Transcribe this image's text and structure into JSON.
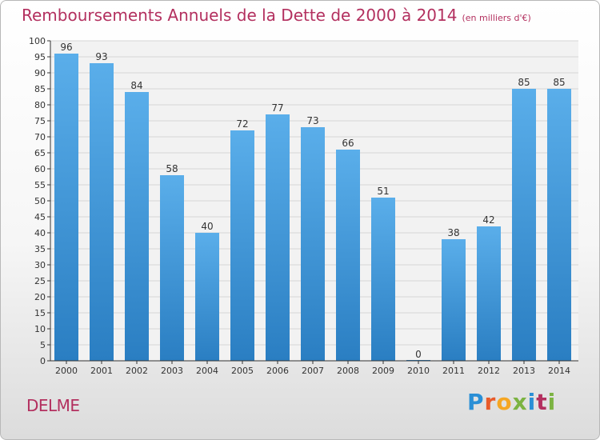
{
  "header": {
    "title": "Remboursements Annuels de la Dette de 2000 à 2014",
    "unit": "(en milliers d'€)"
  },
  "town": "DELME",
  "logo": {
    "text": "Proxiti"
  },
  "colors": {
    "accent": "#b3305f",
    "bar_light": "#5aaeea",
    "bar_dark": "#2a7ec2",
    "axis": "#333333"
  },
  "chart_data": {
    "type": "bar",
    "title": "Remboursements Annuels de la Dette de 2000 à 2014",
    "subtitle": "(en milliers d'€)",
    "xlabel": "",
    "ylabel": "",
    "categories": [
      "2000",
      "2001",
      "2002",
      "2003",
      "2004",
      "2005",
      "2006",
      "2007",
      "2008",
      "2009",
      "2010",
      "2011",
      "2012",
      "2013",
      "2014"
    ],
    "values": [
      96,
      93,
      84,
      58,
      40,
      72,
      77,
      73,
      66,
      51,
      0,
      38,
      42,
      85,
      85
    ],
    "ylim": [
      0,
      100
    ],
    "ytick_step": 5,
    "grid": true,
    "legend": "none"
  }
}
